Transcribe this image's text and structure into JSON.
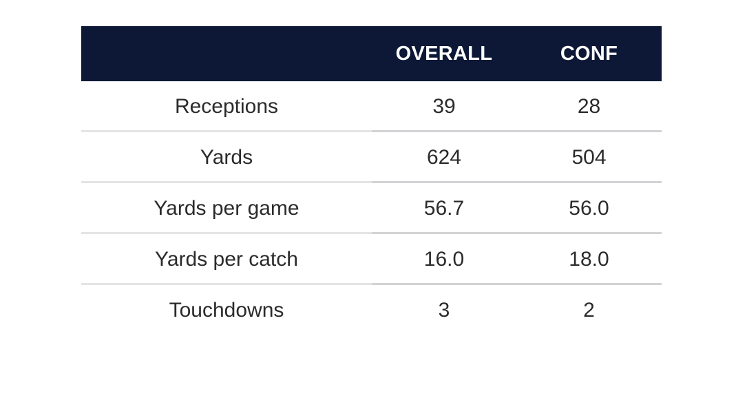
{
  "table": {
    "headers": {
      "label": "",
      "overall": "OVERALL",
      "conf": "CONF"
    },
    "rows": [
      {
        "label": "Receptions",
        "overall": "39",
        "conf": "28"
      },
      {
        "label": "Yards",
        "overall": "624",
        "conf": "504"
      },
      {
        "label": "Yards per game",
        "overall": "56.7",
        "conf": "56.0"
      },
      {
        "label": "Yards per catch",
        "overall": "16.0",
        "conf": "18.0"
      },
      {
        "label": "Touchdowns",
        "overall": "3",
        "conf": "2"
      }
    ]
  },
  "colors": {
    "header_background": "#0c1836",
    "header_text": "#ffffff",
    "body_text": "#2b2b2b",
    "divider": "#e4e4e6"
  }
}
